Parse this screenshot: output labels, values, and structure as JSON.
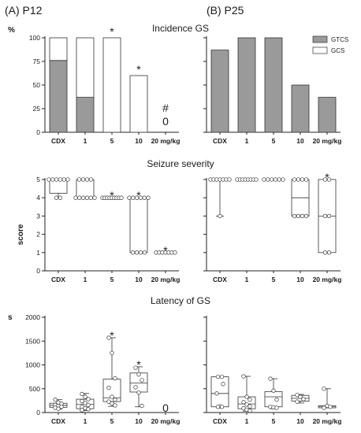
{
  "panel_labels": [
    "(A) P12",
    "(B) P25"
  ],
  "categories": [
    "CDX",
    "1",
    "5",
    "10",
    "20 mg/kg"
  ],
  "colors": {
    "gtcs": "#9a9a9a",
    "gcs": "#ffffff",
    "stroke": "#333333"
  },
  "chart_data": [
    {
      "type": "bar",
      "title": "Incidence GS",
      "ylabel": "%",
      "ylim": [
        0,
        100
      ],
      "yticks": [
        0,
        25,
        50,
        75,
        100
      ],
      "legend": {
        "position": "top-right",
        "entries": [
          "GTCS",
          "GCS"
        ]
      },
      "panels": [
        {
          "label": "(A) P12",
          "categories": [
            "CDX",
            "1",
            "5",
            "10",
            "20 mg/kg"
          ],
          "series": [
            {
              "name": "GTCS",
              "values": [
                76,
                37,
                0,
                0,
                0
              ]
            },
            {
              "name": "GCS",
              "values": [
                24,
                63,
                100,
                60,
                0
              ]
            }
          ],
          "annotations": [
            {
              "category": "5",
              "text": "*"
            },
            {
              "category": "10",
              "text": "*"
            },
            {
              "category": "20 mg/kg",
              "text": "#"
            },
            {
              "category": "20 mg/kg",
              "text": "0"
            }
          ]
        },
        {
          "label": "(B) P25",
          "categories": [
            "CDX",
            "1",
            "5",
            "10",
            "20 mg/kg"
          ],
          "series": [
            {
              "name": "GTCS",
              "values": [
                87,
                100,
                100,
                50,
                37
              ]
            },
            {
              "name": "GCS",
              "values": [
                0,
                0,
                0,
                0,
                0
              ]
            }
          ],
          "annotations": []
        }
      ]
    },
    {
      "type": "box",
      "title": "Seizure severity",
      "ylabel": "score",
      "ylim": [
        0,
        5
      ],
      "yticks": [
        0,
        1,
        2,
        3,
        4,
        5
      ],
      "panels": [
        {
          "label": "(A) P12",
          "groups": [
            {
              "category": "CDX",
              "q1": 4.25,
              "median": 5,
              "q3": 5,
              "min": 4,
              "max": 5,
              "points": [
                5,
                5,
                5,
                5,
                5,
                5,
                4,
                4
              ]
            },
            {
              "category": "1",
              "q1": 4,
              "median": 4,
              "q3": 5,
              "min": 4,
              "max": 5,
              "points": [
                5,
                5,
                5,
                5,
                4,
                4,
                4,
                4,
                4,
                4
              ]
            },
            {
              "category": "5",
              "q1": 4,
              "median": 4,
              "q3": 4,
              "min": 4,
              "max": 4,
              "points": [
                4,
                4,
                4,
                4,
                4,
                4,
                4,
                4,
                4
              ]
            },
            {
              "category": "10",
              "q1": 1,
              "median": 4,
              "q3": 4,
              "min": 1,
              "max": 4,
              "points": [
                4,
                4,
                4,
                4,
                4,
                4,
                1,
                1,
                1,
                1
              ]
            },
            {
              "category": "20 mg/kg",
              "q1": 1,
              "median": 1,
              "q3": 1,
              "min": 1,
              "max": 1,
              "points": [
                1,
                1,
                1,
                1,
                1,
                1,
                1
              ]
            }
          ],
          "annotations": [
            {
              "category": "5",
              "text": "*"
            },
            {
              "category": "10",
              "text": "*"
            },
            {
              "category": "20 mg/kg",
              "text": "*"
            }
          ]
        },
        {
          "label": "(B) P25",
          "groups": [
            {
              "category": "CDX",
              "q1": 5,
              "median": 5,
              "q3": 5,
              "min": 3,
              "max": 5,
              "points": [
                5,
                5,
                5,
                5,
                5,
                5,
                5,
                3
              ]
            },
            {
              "category": "1",
              "q1": 5,
              "median": 5,
              "q3": 5,
              "min": 5,
              "max": 5,
              "points": [
                5,
                5,
                5,
                5,
                5,
                5,
                5,
                5
              ]
            },
            {
              "category": "5",
              "q1": 5,
              "median": 5,
              "q3": 5,
              "min": 5,
              "max": 5,
              "points": [
                5,
                5,
                5,
                5,
                5,
                5
              ]
            },
            {
              "category": "10",
              "q1": 3,
              "median": 4,
              "q3": 5,
              "min": 3,
              "max": 5,
              "points": [
                5,
                5,
                5,
                5,
                3,
                3,
                3,
                3
              ]
            },
            {
              "category": "20 mg/kg",
              "q1": 1,
              "median": 3,
              "q3": 5,
              "min": 1,
              "max": 5,
              "points": [
                5,
                5,
                3,
                3,
                1,
                1
              ]
            }
          ],
          "annotations": [
            {
              "category": "20 mg/kg",
              "text": "*"
            }
          ]
        }
      ]
    },
    {
      "type": "box",
      "title": "Latency of GS",
      "ylabel": "s",
      "ylim": [
        0,
        2000
      ],
      "yticks": [
        0,
        500,
        1000,
        1500,
        2000
      ],
      "panels": [
        {
          "label": "(A) P12",
          "groups": [
            {
              "category": "CDX",
              "q1": 110,
              "median": 150,
              "q3": 195,
              "min": 70,
              "max": 270,
              "points": [
                270,
                210,
                185,
                160,
                140,
                120,
                100,
                80
              ]
            },
            {
              "category": "1",
              "q1": 80,
              "median": 170,
              "q3": 280,
              "min": 40,
              "max": 400,
              "points": [
                390,
                330,
                280,
                240,
                200,
                160,
                120,
                90,
                70,
                50
              ]
            },
            {
              "category": "5",
              "q1": 230,
              "median": 310,
              "q3": 700,
              "min": 130,
              "max": 1570,
              "points": [
                1570,
                1250,
                720,
                520,
                330,
                270,
                230,
                190,
                150
              ]
            },
            {
              "category": "10",
              "q1": 430,
              "median": 620,
              "q3": 830,
              "min": 120,
              "max": 960,
              "points": [
                940,
                800,
                680,
                530,
                420,
                140
              ]
            },
            {
              "category": "20 mg/kg",
              "points": []
            }
          ],
          "annotations": [
            {
              "category": "5",
              "text": "*"
            },
            {
              "category": "10",
              "text": "*"
            },
            {
              "category": "20 mg/kg",
              "text": "0"
            }
          ]
        },
        {
          "label": "(B) P25",
          "groups": [
            {
              "category": "CDX",
              "q1": 120,
              "median": 400,
              "q3": 750,
              "min": 120,
              "max": 750,
              "points": [
                750,
                750,
                600,
                400,
                130,
                120,
                120
              ]
            },
            {
              "category": "1",
              "q1": 80,
              "median": 180,
              "q3": 330,
              "min": 30,
              "max": 760,
              "points": [
                760,
                330,
                270,
                220,
                170,
                130,
                90,
                60,
                40
              ]
            },
            {
              "category": "5",
              "q1": 120,
              "median": 330,
              "q3": 440,
              "min": 80,
              "max": 710,
              "points": [
                710,
                460,
                270,
                120,
                110,
                100
              ]
            },
            {
              "category": "10",
              "q1": 240,
              "median": 300,
              "q3": 360,
              "min": 200,
              "max": 380,
              "points": [
                370,
                330,
                280,
                230
              ]
            },
            {
              "category": "20 mg/kg",
              "q1": 100,
              "median": 130,
              "q3": 140,
              "min": 100,
              "max": 500,
              "points": [
                500,
                140,
                120,
                100
              ]
            }
          ],
          "annotations": []
        }
      ]
    }
  ]
}
